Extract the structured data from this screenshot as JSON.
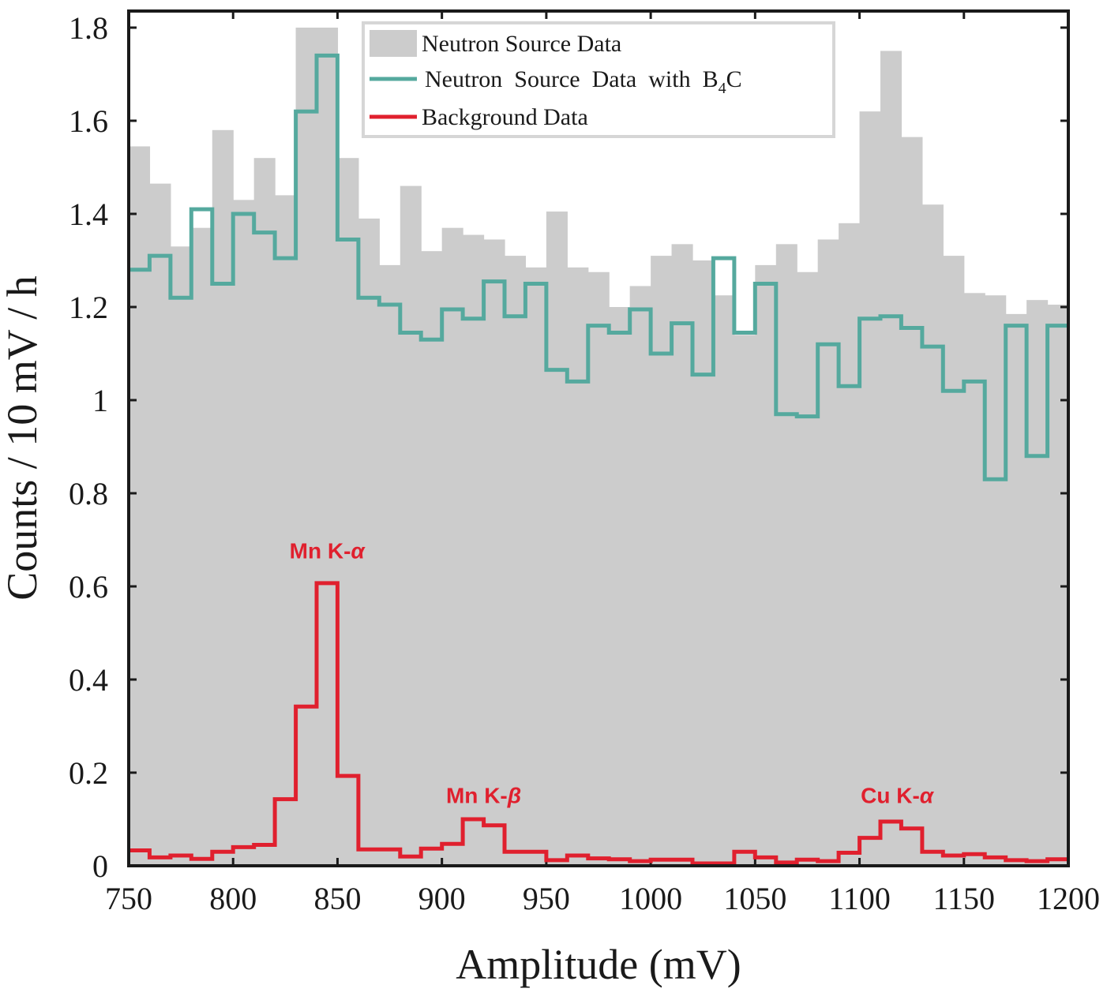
{
  "chart_data": {
    "type": "histogram",
    "title": "",
    "xlabel": "Amplitude (mV)",
    "ylabel": "Counts / 10 mV / h",
    "xlim": [
      750,
      1200
    ],
    "ylim": [
      0,
      1.8
    ],
    "bin_width": 10,
    "xticks": [
      750,
      800,
      850,
      900,
      950,
      1000,
      1050,
      1100,
      1150,
      1200
    ],
    "xtick_labels": [
      "750",
      "800",
      "850",
      "900",
      "950",
      "1000",
      "1050",
      "1100",
      "1150",
      "1200"
    ],
    "yticks": [
      0,
      0.2,
      0.4,
      0.6,
      0.8,
      1,
      1.2,
      1.4,
      1.6,
      1.8
    ],
    "ytick_labels": [
      "0",
      "0.2",
      "0.4",
      "0.6",
      "0.8",
      "1",
      "1.2",
      "1.4",
      "1.6",
      "1.8"
    ],
    "legend_position": "top-center",
    "colors": {
      "neutron_fill": "#cccccc",
      "b4c_line": "#55a99e",
      "background_line": "#e0202e"
    },
    "series": [
      {
        "name": "Neutron Source Data",
        "style": "filled-bars",
        "bin_left_edges": [
          750,
          760,
          770,
          780,
          790,
          800,
          810,
          820,
          830,
          840,
          850,
          860,
          870,
          880,
          890,
          900,
          910,
          920,
          930,
          940,
          950,
          960,
          970,
          980,
          990,
          1000,
          1010,
          1020,
          1030,
          1040,
          1050,
          1060,
          1070,
          1080,
          1090,
          1100,
          1110,
          1120,
          1130,
          1140,
          1150,
          1160,
          1170,
          1180,
          1190
        ],
        "values": [
          1.545,
          1.465,
          1.33,
          1.37,
          1.58,
          1.43,
          1.52,
          1.44,
          1.8,
          1.8,
          1.52,
          1.39,
          1.29,
          1.46,
          1.32,
          1.37,
          1.355,
          1.345,
          1.31,
          1.285,
          1.405,
          1.285,
          1.275,
          1.2,
          1.245,
          1.31,
          1.335,
          1.3,
          1.225,
          1.14,
          1.29,
          1.335,
          1.275,
          1.345,
          1.38,
          1.62,
          1.75,
          1.565,
          1.42,
          1.31,
          1.23,
          1.225,
          1.185,
          1.215,
          1.205
        ]
      },
      {
        "name": "Neutron Source Data with B4C",
        "style": "step-line",
        "bin_left_edges": [
          750,
          760,
          770,
          780,
          790,
          800,
          810,
          820,
          830,
          840,
          850,
          860,
          870,
          880,
          890,
          900,
          910,
          920,
          930,
          940,
          950,
          960,
          970,
          980,
          990,
          1000,
          1010,
          1020,
          1030,
          1040,
          1050,
          1060,
          1070,
          1080,
          1090,
          1100,
          1110,
          1120,
          1130,
          1140,
          1150,
          1160,
          1170,
          1180,
          1190
        ],
        "values": [
          1.28,
          1.31,
          1.22,
          1.41,
          1.25,
          1.4,
          1.36,
          1.305,
          1.62,
          1.74,
          1.345,
          1.22,
          1.205,
          1.145,
          1.13,
          1.195,
          1.175,
          1.255,
          1.18,
          1.25,
          1.065,
          1.04,
          1.16,
          1.145,
          1.195,
          1.1,
          1.165,
          1.055,
          1.305,
          1.145,
          1.25,
          0.97,
          0.965,
          1.12,
          1.03,
          1.175,
          1.18,
          1.155,
          1.115,
          1.02,
          1.04,
          0.83,
          1.16,
          0.88,
          1.16
        ]
      },
      {
        "name": "Background Data",
        "style": "step-line",
        "bin_left_edges": [
          750,
          760,
          770,
          780,
          790,
          800,
          810,
          820,
          830,
          840,
          850,
          860,
          870,
          880,
          890,
          900,
          910,
          920,
          930,
          940,
          950,
          960,
          970,
          980,
          990,
          1000,
          1010,
          1020,
          1030,
          1040,
          1050,
          1060,
          1070,
          1080,
          1090,
          1100,
          1110,
          1120,
          1130,
          1140,
          1150,
          1160,
          1170,
          1180,
          1190
        ],
        "values": [
          0.033,
          0.018,
          0.022,
          0.015,
          0.03,
          0.04,
          0.045,
          0.143,
          0.342,
          0.607,
          0.193,
          0.035,
          0.035,
          0.02,
          0.037,
          0.047,
          0.1,
          0.087,
          0.03,
          0.03,
          0.012,
          0.022,
          0.016,
          0.014,
          0.01,
          0.013,
          0.013,
          0.005,
          0.005,
          0.03,
          0.018,
          0.007,
          0.013,
          0.01,
          0.028,
          0.06,
          0.095,
          0.08,
          0.03,
          0.022,
          0.025,
          0.018,
          0.012,
          0.01,
          0.014
        ]
      }
    ],
    "legend": {
      "entries": [
        {
          "label": "Neutron Source Data",
          "series": 0
        },
        {
          "label": "Neutron  Source  Data  with  B",
          "sub": "4",
          "tail": "C",
          "series": 1
        },
        {
          "label": "Background Data",
          "series": 2
        }
      ]
    },
    "annotations": [
      {
        "element": "Mn",
        "line": "K-",
        "greek": "α",
        "x": 845,
        "y": 0.66
      },
      {
        "element": "Mn",
        "line": "K-",
        "greek": "β",
        "x": 920,
        "y": 0.135
      },
      {
        "element": "Cu",
        "line": "K-",
        "greek": "α",
        "x": 1118,
        "y": 0.135
      }
    ]
  }
}
